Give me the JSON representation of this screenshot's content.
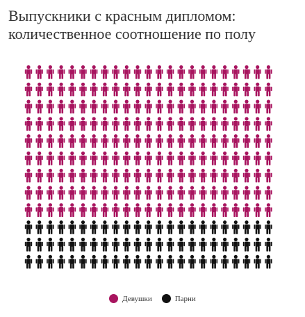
{
  "title_lines": [
    "Выпускники с красным дипломом:",
    "количественное соотношение по полу"
  ],
  "legend": [
    {
      "label": "Девушки",
      "color": "#a8145f"
    },
    {
      "label": "Парни",
      "color": "#111111"
    }
  ],
  "chart_data": {
    "type": "pictogram",
    "icon": "person-icon",
    "title": "Выпускники с красным дипломом: количественное соотношение по полу",
    "grid": {
      "rows": 12,
      "columns": 23
    },
    "series": [
      {
        "name": "Девушки",
        "count": 207,
        "color": "#a8145f"
      },
      {
        "name": "Парни",
        "count": 69,
        "color": "#111111"
      }
    ],
    "total": 276
  }
}
